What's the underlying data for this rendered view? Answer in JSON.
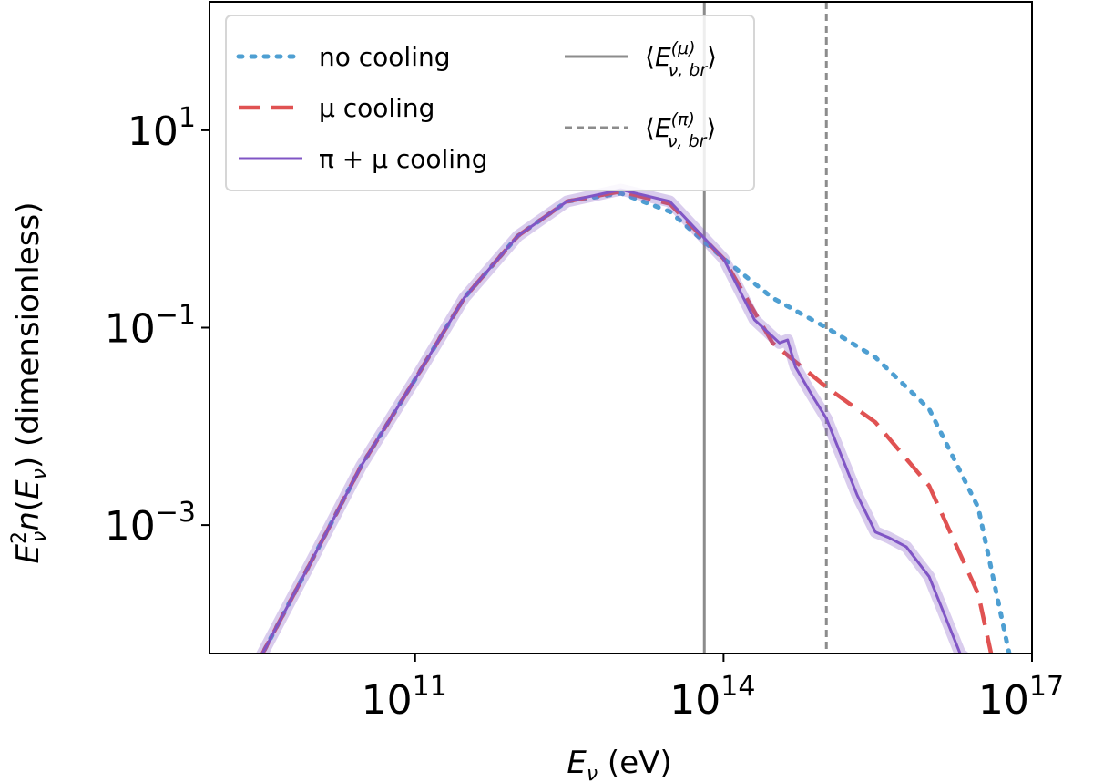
{
  "chart_data": {
    "type": "line",
    "xlabel": "E_ν (eV)",
    "ylabel": "E_ν² n(E_ν) (dimensionless)",
    "x_scale": "log",
    "y_scale": "log",
    "xlim": [
      1000000000.0,
      1e+17
    ],
    "ylim": [
      5e-05,
      200.0
    ],
    "x_ticks": [
      {
        "value": 100000000000.0,
        "base": "10",
        "exp": "11"
      },
      {
        "value": 100000000000000.0,
        "base": "10",
        "exp": "14"
      },
      {
        "value": 1e+17,
        "base": "10",
        "exp": "17"
      }
    ],
    "y_ticks": [
      {
        "value": 10,
        "base": "10",
        "exp": "1"
      },
      {
        "value": 0.1,
        "base": "10",
        "exp": "−1"
      },
      {
        "value": 0.001,
        "base": "10",
        "exp": "−3"
      }
    ],
    "legend_position": "top-left",
    "series": [
      {
        "name": "no cooling",
        "color": "#4e9fd2",
        "style": "dotted",
        "x": [
          3000000000.0,
          10000000000.0,
          30000000000.0,
          100000000000.0,
          300000000000.0,
          1000000000000.0,
          3000000000000.0,
          10000000000000.0,
          30000000000000.0,
          100000000000000.0,
          300000000000000.0,
          1000000000000000.0,
          3000000000000000.0,
          1e+16,
          3e+16,
          6e+16
        ],
        "y": [
          4.2e-05,
          0.00045,
          0.004,
          0.03,
          0.2,
          0.85,
          1.9,
          2.3,
          1.5,
          0.5,
          0.2,
          0.1,
          0.05,
          0.015,
          0.0015,
          5e-05
        ]
      },
      {
        "name": "μ cooling",
        "color": "#e05252",
        "style": "dashed",
        "x": [
          3000000000.0,
          10000000000.0,
          30000000000.0,
          100000000000.0,
          300000000000.0,
          1000000000000.0,
          3000000000000.0,
          10000000000000.0,
          30000000000000.0,
          100000000000000.0,
          300000000000000.0,
          1000000000000000.0,
          3000000000000000.0,
          1e+16,
          3e+16,
          4e+16
        ],
        "y": [
          4.2e-05,
          0.00045,
          0.004,
          0.03,
          0.2,
          0.85,
          1.9,
          2.4,
          1.8,
          0.5,
          0.07,
          0.025,
          0.011,
          0.0025,
          0.0002,
          5e-05
        ]
      },
      {
        "name": "π + μ cooling",
        "color": "#8055c5",
        "style": "solid",
        "x": [
          3000000000.0,
          10000000000.0,
          30000000000.0,
          100000000000.0,
          300000000000.0,
          1000000000000.0,
          3000000000000.0,
          10000000000000.0,
          30000000000000.0,
          100000000000000.0,
          200000000000000.0,
          350000000000000.0,
          420000000000000.0,
          500000000000000.0,
          700000000000000.0,
          1000000000000000.0,
          2000000000000000.0,
          3000000000000000.0,
          4000000000000000.0,
          6000000000000000.0,
          1e+16,
          2e+16,
          3e+16
        ],
        "y": [
          4.2e-05,
          0.00045,
          0.004,
          0.03,
          0.2,
          0.85,
          1.9,
          2.5,
          1.9,
          0.5,
          0.12,
          0.07,
          0.075,
          0.04,
          0.022,
          0.012,
          0.002,
          0.00085,
          0.00075,
          0.0006,
          0.0003,
          5e-05,
          3.5e-05
        ]
      }
    ],
    "vlines": [
      {
        "name": "⟨E_ν,br^(μ)⟩",
        "x": 65000000000000.0,
        "color": "#8c8c8c",
        "style": "solid"
      },
      {
        "name": "⟨E_ν,br^(π)⟩",
        "x": 1000000000000000.0,
        "color": "#8c8c8c",
        "style": "dashed"
      }
    ]
  }
}
